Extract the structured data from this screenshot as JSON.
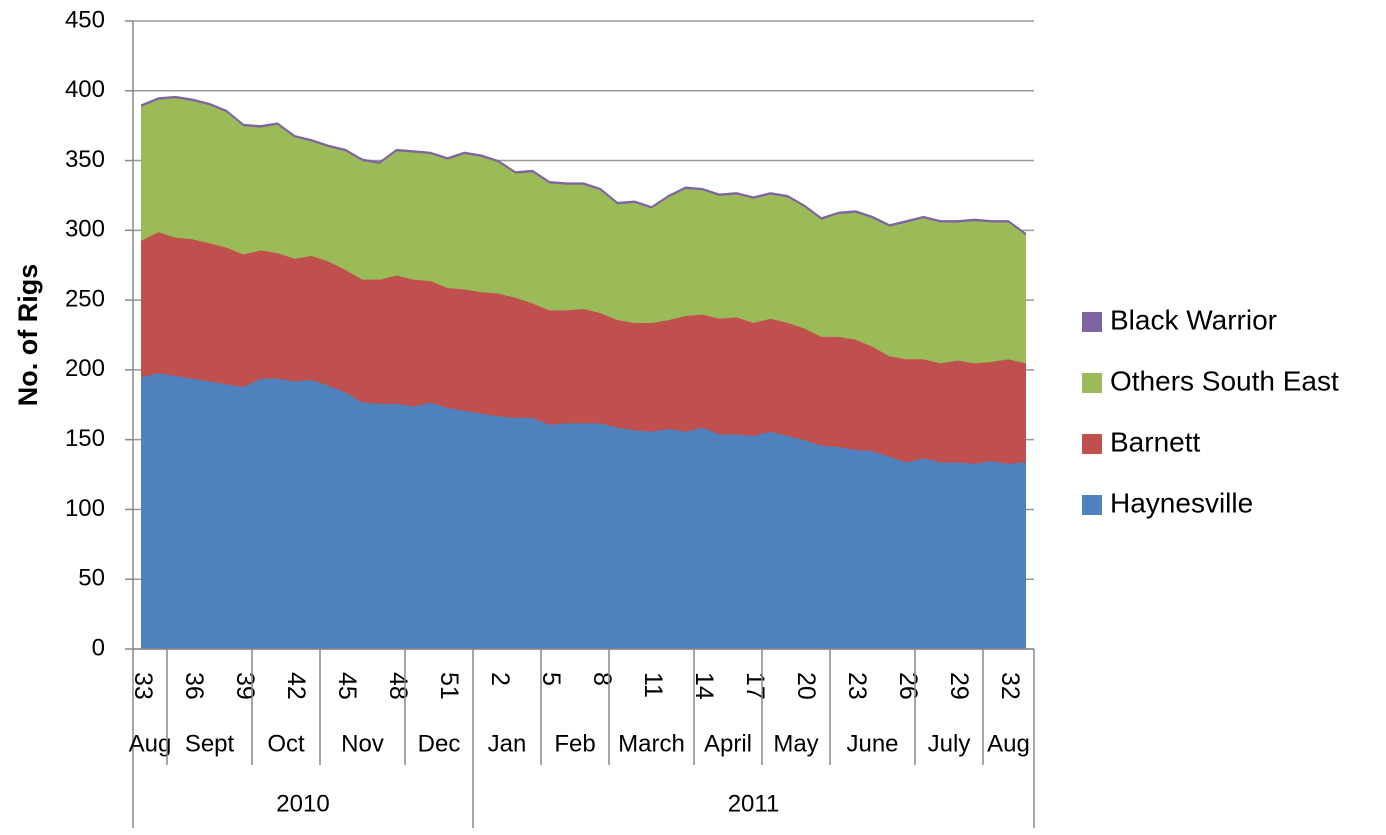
{
  "chart_data": {
    "type": "stacked_area",
    "y_label": "No. of Rigs",
    "categories": [
      "33",
      null,
      null,
      "36",
      null,
      null,
      "39",
      null,
      null,
      "42",
      null,
      null,
      "45",
      null,
      null,
      "48",
      null,
      null,
      "51",
      null,
      null,
      "2",
      null,
      null,
      "5",
      null,
      null,
      "8",
      null,
      null,
      "11",
      null,
      null,
      "14",
      null,
      null,
      "17",
      null,
      null,
      "20",
      null,
      null,
      "23",
      null,
      null,
      "26",
      null,
      null,
      "29",
      null,
      null,
      "32",
      null
    ],
    "months": [
      {
        "label": "Aug",
        "count": 2
      },
      {
        "label": "Sept",
        "count": 5
      },
      {
        "label": "Oct",
        "count": 4
      },
      {
        "label": "Nov",
        "count": 5
      },
      {
        "label": "Dec",
        "count": 4
      },
      {
        "label": "Jan",
        "count": 4
      },
      {
        "label": "Feb",
        "count": 4
      },
      {
        "label": "March",
        "count": 5
      },
      {
        "label": "April",
        "count": 4
      },
      {
        "label": "May",
        "count": 4
      },
      {
        "label": "June",
        "count": 5
      },
      {
        "label": "July",
        "count": 4
      },
      {
        "label": "Aug",
        "count": 3
      }
    ],
    "years": [
      {
        "label": "2010",
        "count": 20
      },
      {
        "label": "2011",
        "count": 33
      }
    ],
    "series": [
      {
        "name": "Haynesville",
        "color": "#4f81bd",
        "values": [
          195,
          198,
          196,
          194,
          192,
          190,
          188,
          194,
          194,
          192,
          193,
          189,
          184,
          177,
          176,
          176,
          174,
          177,
          173,
          171,
          169,
          167,
          166,
          166,
          161,
          162,
          162,
          162,
          159,
          157,
          156,
          158,
          156,
          159,
          154,
          154,
          153,
          156,
          153,
          150,
          146,
          145,
          143,
          142,
          138,
          134,
          137,
          134,
          134,
          133,
          135,
          133,
          134
        ]
      },
      {
        "name": "Barnett",
        "color": "#c0504d",
        "values": [
          98,
          101,
          99,
          100,
          99,
          98,
          95,
          92,
          90,
          88,
          89,
          89,
          88,
          88,
          89,
          92,
          91,
          87,
          86,
          87,
          87,
          88,
          86,
          82,
          82,
          81,
          82,
          79,
          77,
          77,
          78,
          78,
          83,
          81,
          83,
          84,
          81,
          81,
          81,
          80,
          78,
          79,
          79,
          75,
          72,
          74,
          71,
          71,
          73,
          72,
          71,
          75,
          71
        ]
      },
      {
        "name": "Others South East",
        "color": "#9bbb59",
        "values": [
          96,
          95,
          100,
          99,
          99,
          97,
          92,
          88,
          92,
          87,
          82,
          82,
          85,
          85,
          83,
          89,
          91,
          91,
          92,
          97,
          97,
          94,
          89,
          94,
          91,
          90,
          89,
          88,
          83,
          86,
          82,
          88,
          91,
          89,
          88,
          88,
          89,
          89,
          90,
          87,
          84,
          88,
          91,
          92,
          93,
          98,
          101,
          101,
          99,
          102,
          100,
          98,
          92
        ]
      },
      {
        "name": "Black Warrior",
        "color": "#8064a2",
        "values": [
          1,
          1,
          1,
          1,
          1,
          1,
          1,
          1,
          1,
          1,
          1,
          1,
          1,
          1,
          1,
          1,
          1,
          1,
          1,
          1,
          1,
          1,
          1,
          1,
          1,
          1,
          1,
          1,
          1,
          1,
          1,
          1,
          1,
          1,
          1,
          1,
          1,
          1,
          1,
          1,
          1,
          1,
          1,
          1,
          1,
          1,
          1,
          1,
          1,
          1,
          1,
          1,
          1
        ]
      }
    ],
    "ylim": [
      0,
      450
    ],
    "yticks": [
      0,
      50,
      100,
      150,
      200,
      250,
      300,
      350,
      400,
      450
    ],
    "grid": true,
    "legend": "right"
  }
}
